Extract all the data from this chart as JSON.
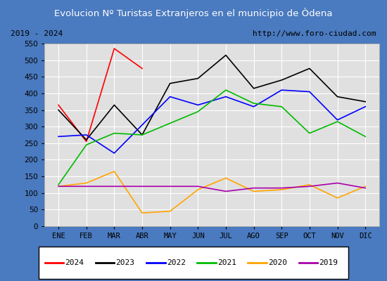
{
  "title": "Evolucion Nº Turistas Extranjeros en el municipio de Òdena",
  "subtitle_left": "2019 - 2024",
  "subtitle_right": "http://www.foro-ciudad.com",
  "months": [
    "ENE",
    "FEB",
    "MAR",
    "ABR",
    "MAY",
    "JUN",
    "JUL",
    "AGO",
    "SEP",
    "OCT",
    "NOV",
    "DIC"
  ],
  "series": {
    "2024": [
      365,
      255,
      535,
      475,
      null,
      null,
      null,
      null,
      null,
      null,
      null,
      null
    ],
    "2023": [
      350,
      260,
      365,
      275,
      430,
      445,
      515,
      415,
      440,
      475,
      390,
      375
    ],
    "2022": [
      270,
      275,
      220,
      305,
      390,
      365,
      390,
      360,
      410,
      405,
      320,
      360
    ],
    "2021": [
      125,
      245,
      280,
      275,
      310,
      345,
      410,
      370,
      360,
      280,
      315,
      270
    ],
    "2020": [
      120,
      130,
      165,
      40,
      45,
      110,
      145,
      105,
      110,
      125,
      85,
      120
    ],
    "2019": [
      120,
      120,
      120,
      120,
      120,
      120,
      105,
      115,
      115,
      120,
      130,
      115
    ]
  },
  "colors": {
    "2024": "#ff0000",
    "2023": "#000000",
    "2022": "#0000ff",
    "2021": "#00bb00",
    "2020": "#ffa500",
    "2019": "#aa00aa"
  },
  "ylim": [
    0,
    550
  ],
  "yticks": [
    0,
    50,
    100,
    150,
    200,
    250,
    300,
    350,
    400,
    450,
    500,
    550
  ],
  "title_bg": "#4a7abf",
  "title_color": "#ffffff",
  "plot_bg": "#e0e0e0",
  "grid_color": "#ffffff",
  "border_color": "#4a7abf",
  "legend_years": [
    "2024",
    "2023",
    "2022",
    "2021",
    "2020",
    "2019"
  ]
}
